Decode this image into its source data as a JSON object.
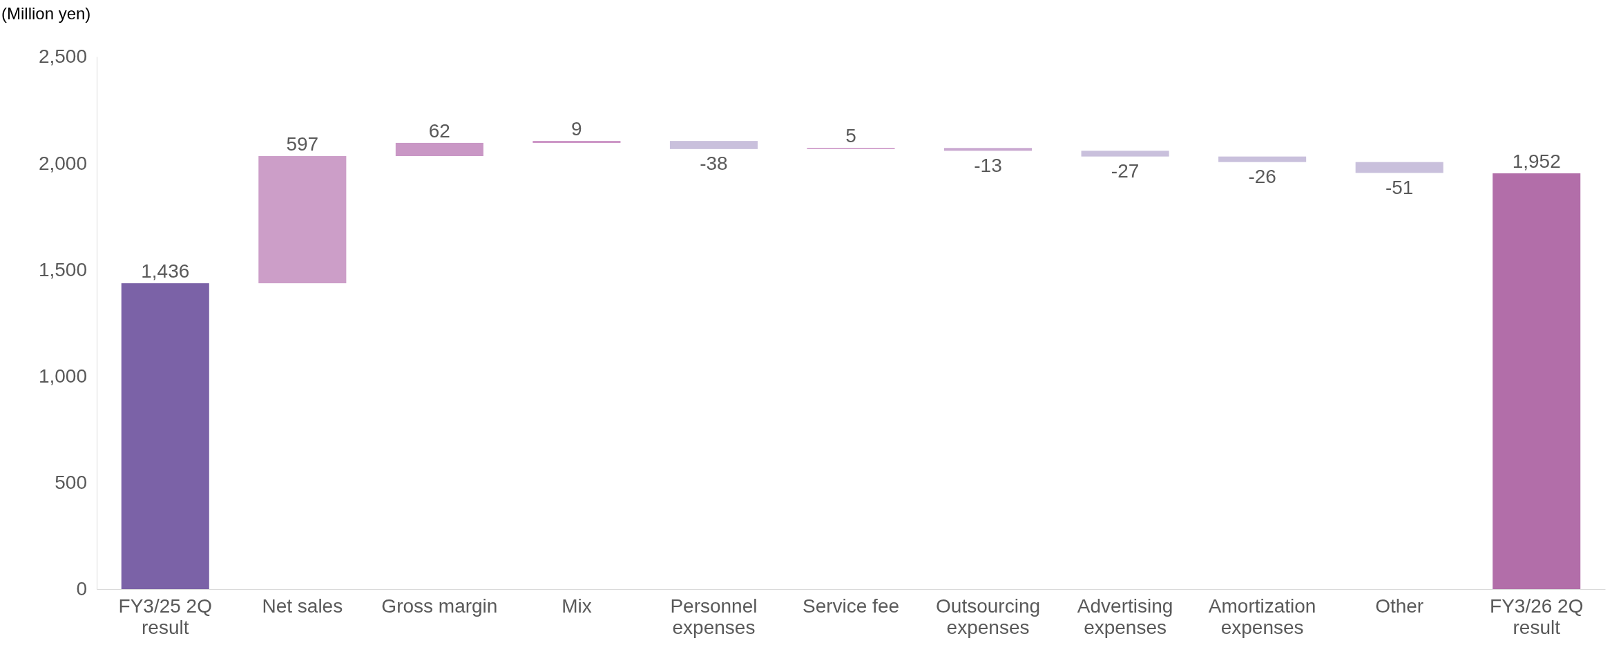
{
  "chart_data": {
    "type": "bar",
    "ylabel": "(Million yen)",
    "categories": [
      "FY3/25 2Q result",
      "Net sales",
      "Gross margin",
      "Mix",
      "Personnel expenses",
      "Service fee",
      "Outsourcing expenses",
      "Advertising expenses",
      "Amortization expenses",
      "Other",
      "FY3/26 2Q result"
    ],
    "values": [
      1436,
      597,
      62,
      9,
      -38,
      5,
      -13,
      -27,
      -26,
      -51,
      1952
    ],
    "base": [
      0,
      1436,
      2033,
      2095,
      2104,
      2066,
      2071,
      2058,
      2031,
      2005,
      0
    ],
    "colors": [
      "#7b62a7",
      "#cc9ec8",
      "#c997c5",
      "#c98fc3",
      "#c9c0dc",
      "#c98fc3",
      "#c9a8d0",
      "#c9c0dc",
      "#c9c0dc",
      "#c9c0dc",
      "#b26ea9"
    ],
    "value_labels": [
      "1,436",
      "597",
      "62",
      "9",
      "-38",
      "5",
      "-13",
      "-27",
      "-26",
      "-51",
      "1,952"
    ],
    "ylim": [
      0,
      2500
    ],
    "yticks": [
      {
        "value": 0,
        "label": "0"
      },
      {
        "value": 500,
        "label": "500"
      },
      {
        "value": 1000,
        "label": "1,000"
      },
      {
        "value": 1500,
        "label": "1,500"
      },
      {
        "value": 2000,
        "label": "2,000"
      },
      {
        "value": 2500,
        "label": "2,500"
      }
    ],
    "grid": false
  }
}
